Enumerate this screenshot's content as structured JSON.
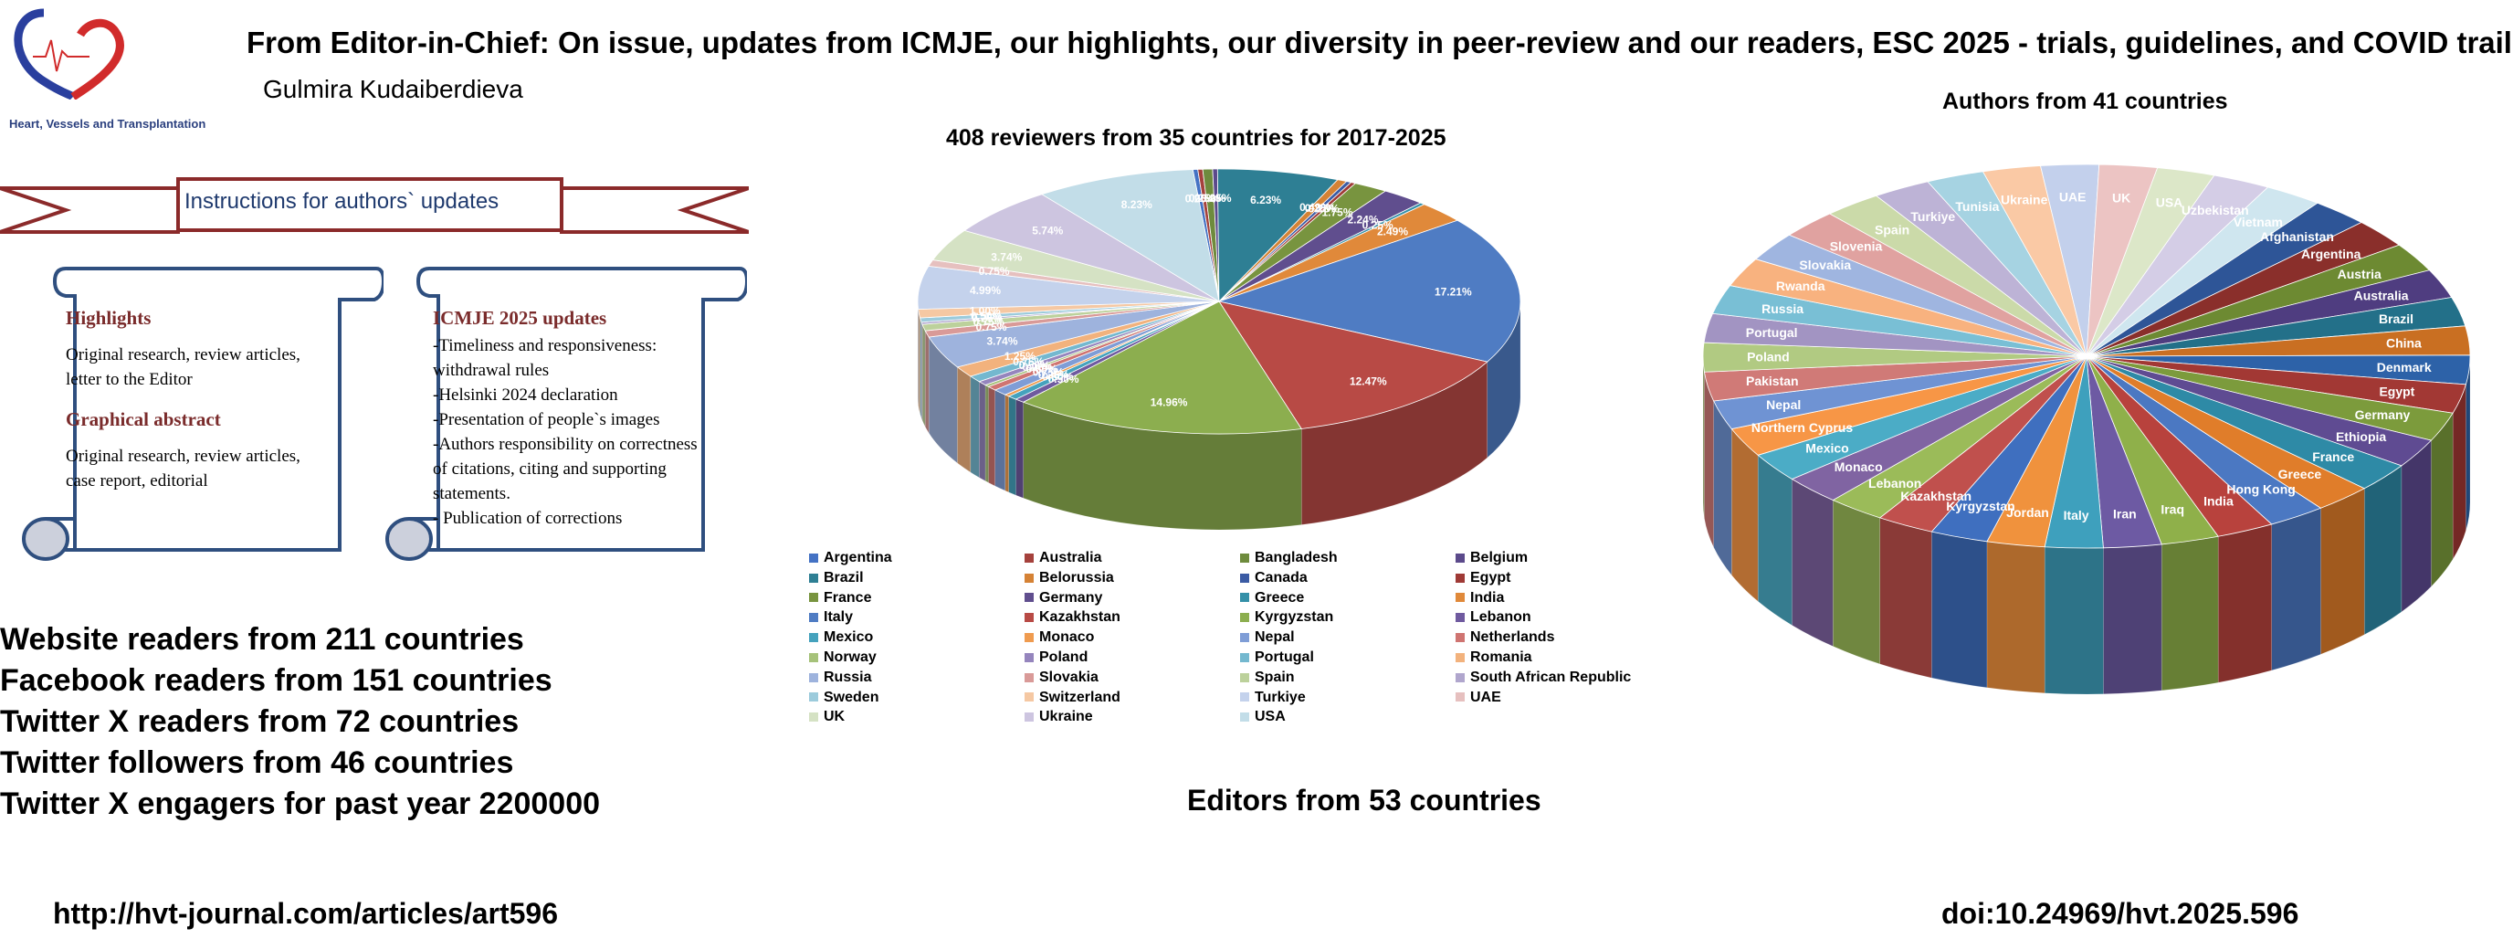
{
  "header": {
    "journal_name": "Heart, Vessels and Transplantation",
    "title": "From Editor-in-Chief: On issue, updates from ICMJE, our highlights, our diversity in peer-review and our readers, ESC 2025 - trials,  guidelines, and COVID trail",
    "author": "Gulmira Kudaiberdieva"
  },
  "instructions": {
    "ribbon_label": "Instructions for authors` updates",
    "left_scroll": {
      "heading1": "Highlights",
      "text1": "Original research, review articles, letter to the Editor",
      "heading2": "Graphical abstract",
      "text2": "Original research, review articles, case report, editorial"
    },
    "right_scroll": {
      "heading": "ICMJE 2025 updates",
      "lines": [
        "-Timeliness and responsiveness: withdrawal rules",
        "-Helsinki 2024 declaration",
        "-Presentation of people`s images",
        "-Authors responsibility on correctness of citations, citing and supporting statements.",
        "- Publication of corrections"
      ]
    }
  },
  "readers": [
    "Website readers from 211 countries",
    "Facebook readers from 151 countries",
    "Twitter X readers from 72 countries",
    "Twitter followers from 46 countries",
    "Twitter X engagers for past year 2200000"
  ],
  "editors_text": "Editors from 53 countries",
  "footer": {
    "url": "http://hvt-journal.com/articles/art596",
    "doi": "doi:10.24969/hvt.2025.596"
  },
  "chart_data": [
    {
      "type": "pie",
      "title": "408 reviewers from 35 countries for 2017-2025",
      "legend_position": "bottom",
      "categories": [
        "Argentina",
        "Australia",
        "Bangladesh",
        "Belgium",
        "Brazil",
        "Belorussia",
        "Canada",
        "Egypt",
        "France",
        "Germany",
        "Greece",
        "India",
        "Italy",
        "Kazakhstan",
        "Kyrgyzstan",
        "Lebanon",
        "Mexico",
        "Monaco",
        "Nepal",
        "Netherlands",
        "Norway",
        "Poland",
        "Portugal",
        "Romania",
        "Russia",
        "Slovakia",
        "Spain",
        "South African Republic",
        "Sweden",
        "Switzerland",
        "Turkiye",
        "UAE",
        "UK",
        "Ukraine",
        "USA"
      ],
      "values": [
        0.25,
        0.25,
        0.5,
        0.25,
        6.23,
        0.49,
        0.25,
        0.25,
        1.75,
        2.24,
        0.25,
        2.49,
        17.21,
        12.47,
        14.96,
        0.5,
        0.5,
        0.25,
        0.75,
        0.5,
        0.25,
        0.5,
        0.75,
        1.25,
        3.74,
        0.75,
        0.75,
        0.25,
        0.5,
        1.0,
        4.99,
        0.75,
        3.74,
        5.74,
        8.23
      ],
      "data_labels": [
        "0.25%",
        "0.25%",
        "0.50%",
        "0.25%",
        "6.23%",
        "0.49%",
        "0.25%",
        "0.25%",
        "1.75%",
        "2.24%",
        "0.25%",
        "2.49%",
        "17.21%",
        "12.47%",
        "14.96%",
        "0.50%",
        "0.50%",
        "0.25%",
        "0.75%",
        "0.50%",
        "0.25%",
        "0.50%",
        "0.75%",
        "1.25%",
        "3.74%",
        "0.75%",
        "0.75%",
        "0.25%",
        "0.50%",
        "1.00%",
        "4.99%",
        "0.75%",
        "3.74%",
        "5.74%",
        "8.23%"
      ],
      "colors": [
        "#4472c4",
        "#a5413c",
        "#6e8b3d",
        "#5b4a8b",
        "#2e7f94",
        "#d58235",
        "#3b5ba4",
        "#9f3a36",
        "#78943f",
        "#604e8e",
        "#3490a8",
        "#e0893a",
        "#4f7cc3",
        "#b84a45",
        "#8cae4f",
        "#6f5a9f",
        "#45a2bd",
        "#ef9b4f",
        "#7f9dd6",
        "#cf7471",
        "#a6c27a",
        "#9585bd",
        "#74b8cf",
        "#f2b27d",
        "#9eb3dd",
        "#d99a98",
        "#bcd19b",
        "#b0a6cd",
        "#9ccbdc",
        "#f5c8a3",
        "#c4d2ec",
        "#e6c0bf",
        "#d5e2c4",
        "#cdc5e0",
        "#c2dde8"
      ]
    },
    {
      "type": "pie",
      "title": "Authors from 41  countries",
      "labels": [
        "Afghanistan",
        "Argentina",
        "Austria",
        "Australia",
        "Brazil",
        "China",
        "Denmark",
        "Egypt",
        "Germany",
        "Ethiopia",
        "France",
        "Greece",
        "Hong Kong",
        "India",
        "Iraq",
        "Iran",
        "Italy",
        "Jordan",
        "Kyrgyzstan",
        "Kazakhstan",
        "Lebanon",
        "Monaco",
        "Mexico",
        "Northern Cyprus",
        "Nepal",
        "Pakistan",
        "Poland",
        "Portugal",
        "Russia",
        "Rwanda",
        "Slovakia",
        "Slovenia",
        "Spain",
        "Turkiye",
        "Tunisia",
        "Ukraine",
        "UAE",
        "UK",
        "USA",
        "Uzbekistan",
        "Vietnam"
      ],
      "values": [
        1,
        1,
        1,
        1,
        1,
        1,
        1,
        1,
        1,
        1,
        1,
        1,
        1,
        1,
        1,
        1,
        1,
        1,
        1,
        1,
        1,
        1,
        1,
        1,
        1,
        1,
        1,
        1,
        1,
        1,
        1,
        1,
        1,
        1,
        1,
        1,
        1,
        1,
        1,
        1,
        1
      ],
      "colors": [
        "#2e5597",
        "#8a2f2b",
        "#6d8a32",
        "#4f3d80",
        "#237089",
        "#c96f22",
        "#2d62a8",
        "#a23834",
        "#7c9b3c",
        "#5f4b92",
        "#2e8aa6",
        "#e07d2a",
        "#4b78c2",
        "#b8423d",
        "#8fb04a",
        "#6d5aa3",
        "#3ea0bd",
        "#f0923d",
        "#3f6fbf",
        "#c0504d",
        "#9bbb59",
        "#8064a2",
        "#4bacc6",
        "#f79646",
        "#6f93d3",
        "#d07a77",
        "#b1ca82",
        "#a294c2",
        "#79bfd5",
        "#f8b27f",
        "#9fb5e0",
        "#e0a2a0",
        "#cbdaa9",
        "#bdb3d6",
        "#a6d3e2",
        "#fac9a5",
        "#c3d0ec",
        "#ecc4c3",
        "#dce7c8",
        "#d4cde6",
        "#cfe6ef"
      ]
    }
  ],
  "legend_text_color": "#000000"
}
